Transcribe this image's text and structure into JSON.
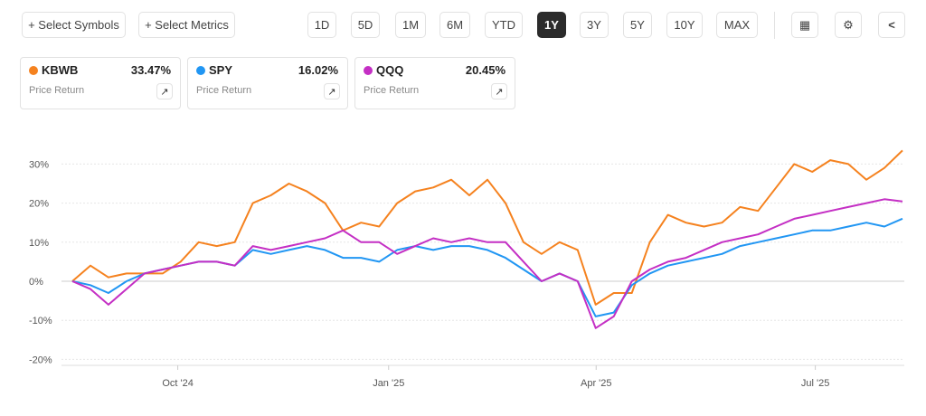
{
  "toolbar": {
    "select_symbols": "+ Select Symbols",
    "select_metrics": "+ Select Metrics",
    "ranges": [
      "1D",
      "5D",
      "1M",
      "6M",
      "YTD",
      "1Y",
      "3Y",
      "5Y",
      "10Y",
      "MAX"
    ],
    "active_range": "1Y"
  },
  "cards": [
    {
      "symbol": "KBWB",
      "value": "33.47%",
      "label": "Price Return",
      "color": "#f5821f"
    },
    {
      "symbol": "SPY",
      "value": "16.02%",
      "label": "Price Return",
      "color": "#2196f3"
    },
    {
      "symbol": "QQQ",
      "value": "20.45%",
      "label": "Price Return",
      "color": "#c42fc4"
    }
  ],
  "chart_data": {
    "type": "line",
    "y_ticks": [
      30,
      20,
      10,
      0,
      -10,
      -20
    ],
    "y_tick_labels": [
      "30%",
      "20%",
      "10%",
      "0%",
      "-10%",
      "-20%"
    ],
    "ylim": [
      -22,
      36
    ],
    "x_ticks": [
      {
        "label": "Oct '24",
        "pos": 0.127
      },
      {
        "label": "Jan '25",
        "pos": 0.381
      },
      {
        "label": "Apr '25",
        "pos": 0.631
      },
      {
        "label": "Jul '25",
        "pos": 0.895
      }
    ],
    "sampling": "approximately weekly, Aug 2024 to Jul 2025",
    "series": [
      {
        "name": "KBWB",
        "color": "#f5821f",
        "values": [
          0,
          4,
          1,
          2,
          2,
          2,
          5,
          10,
          9,
          10,
          20,
          22,
          25,
          23,
          20,
          13,
          15,
          14,
          20,
          23,
          24,
          26,
          22,
          26,
          20,
          10,
          7,
          10,
          8,
          -6,
          -3,
          -3,
          10,
          17,
          15,
          14,
          15,
          19,
          18,
          24,
          30,
          28,
          31,
          30,
          26,
          29,
          33.47
        ]
      },
      {
        "name": "SPY",
        "color": "#2196f3",
        "values": [
          0,
          -1,
          -3,
          0,
          2,
          3,
          4,
          5,
          5,
          4,
          8,
          7,
          8,
          9,
          8,
          6,
          6,
          5,
          8,
          9,
          8,
          9,
          9,
          8,
          6,
          3,
          0,
          2,
          0,
          -9,
          -8,
          -1,
          2,
          4,
          5,
          6,
          7,
          9,
          10,
          11,
          12,
          13,
          13,
          14,
          15,
          14,
          16.02
        ]
      },
      {
        "name": "QQQ",
        "color": "#c42fc4",
        "values": [
          0,
          -2,
          -6,
          -2,
          2,
          3,
          4,
          5,
          5,
          4,
          9,
          8,
          9,
          10,
          11,
          13,
          10,
          10,
          7,
          9,
          11,
          10,
          11,
          10,
          10,
          5,
          0,
          2,
          0,
          -12,
          -9,
          0,
          3,
          5,
          6,
          8,
          10,
          11,
          12,
          14,
          16,
          17,
          18,
          19,
          20,
          21,
          20.45
        ]
      }
    ]
  }
}
